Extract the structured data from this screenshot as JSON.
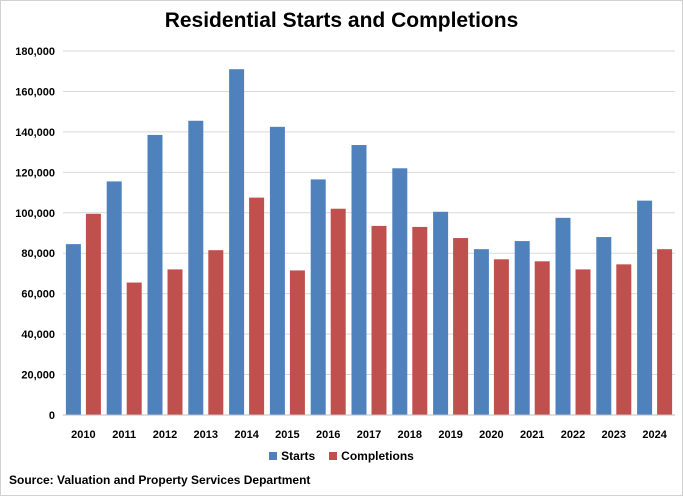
{
  "chart_data": {
    "type": "bar",
    "title": "Residential Starts and Completions",
    "categories": [
      "2010",
      "2011",
      "2012",
      "2013",
      "2014",
      "2015",
      "2016",
      "2017",
      "2018",
      "2019",
      "2020",
      "2021",
      "2022",
      "2023",
      "2024"
    ],
    "series": [
      {
        "name": "Starts",
        "color": "#4f81bd",
        "values": [
          84500,
          115500,
          138500,
          145500,
          171000,
          142500,
          116500,
          133500,
          122000,
          100500,
          82000,
          86000,
          97500,
          88000,
          106000
        ]
      },
      {
        "name": "Completions",
        "color": "#c0504d",
        "values": [
          99500,
          65500,
          72000,
          81500,
          107500,
          71500,
          102000,
          93500,
          93000,
          87500,
          77000,
          76000,
          72000,
          74500,
          82000
        ]
      }
    ],
    "ylim": [
      0,
      180000
    ],
    "yticks": [
      "0",
      "20,000",
      "40,000",
      "60,000",
      "80,000",
      "100,000",
      "120,000",
      "140,000",
      "160,000",
      "180,000"
    ],
    "grid": true,
    "legend_position": "bottom"
  },
  "source": "Source: Valuation and Property Services Department"
}
